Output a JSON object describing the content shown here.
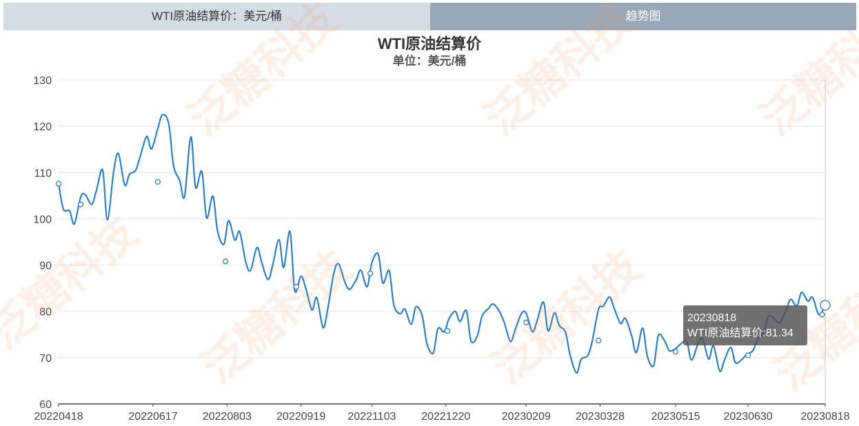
{
  "tabs": {
    "left_label": "WTI原油结算价：美元/桶",
    "right_label": "趋势图"
  },
  "watermark_text": "泛糖科技",
  "colors": {
    "line": "#2b7fc7",
    "tab_left": "#d5dce4",
    "tab_right": "#98a8b8"
  },
  "tooltip": {
    "date": "20230818",
    "text": "WTI原油结算价:81.34"
  },
  "chart_data": {
    "type": "line",
    "title": "WTI原油结算价",
    "subtitle": "单位：美元/桶",
    "xlabel": "",
    "ylabel": "",
    "ylim": [
      60,
      130
    ],
    "yticks": [
      60,
      70,
      80,
      90,
      100,
      110,
      120,
      130
    ],
    "xticks": [
      "20220418",
      "20220617",
      "20220803",
      "20220919",
      "20221103",
      "20221220",
      "20230209",
      "20230328",
      "20230515",
      "20230630",
      "20230818"
    ],
    "grid": "horizontal",
    "series": [
      {
        "name": "WTI原油结算价",
        "x": [
          "20220418",
          "20220421",
          "20220425",
          "20220428",
          "20220502",
          "20220505",
          "20220509",
          "20220512",
          "20220516",
          "20220519",
          "20220523",
          "20220526",
          "20220530",
          "20220602",
          "20220606",
          "20220609",
          "20220613",
          "20220616",
          "20220620",
          "20220623",
          "20220627",
          "20220630",
          "20220704",
          "20220707",
          "20220711",
          "20220714",
          "20220718",
          "20220721",
          "20220725",
          "20220728",
          "20220801",
          "20220804",
          "20220808",
          "20220811",
          "20220815",
          "20220818",
          "20220822",
          "20220825",
          "20220829",
          "20220901",
          "20220905",
          "20220908",
          "20220912",
          "20220915",
          "20220919",
          "20220922",
          "20220926",
          "20220929",
          "20221003",
          "20221006",
          "20221010",
          "20221013",
          "20221017",
          "20221020",
          "20221024",
          "20221027",
          "20221031",
          "20221103",
          "20221107",
          "20221110",
          "20221114",
          "20221117",
          "20221121",
          "20221124",
          "20221128",
          "20221201",
          "20221205",
          "20221208",
          "20221212",
          "20221215",
          "20221219",
          "20221222",
          "20221226",
          "20221229",
          "20230102",
          "20230105",
          "20230109",
          "20230112",
          "20230116",
          "20230119",
          "20230123",
          "20230126",
          "20230130",
          "20230202",
          "20230206",
          "20230209",
          "20230213",
          "20230216",
          "20230220",
          "20230223",
          "20230227",
          "20230302",
          "20230306",
          "20230309",
          "20230313",
          "20230316",
          "20230320",
          "20230323",
          "20230327",
          "20230330",
          "20230403",
          "20230406",
          "20230410",
          "20230413",
          "20230417",
          "20230420",
          "20230424",
          "20230427",
          "20230501",
          "20230504",
          "20230508",
          "20230511",
          "20230515",
          "20230518",
          "20230522",
          "20230525",
          "20230529",
          "20230601",
          "20230605",
          "20230608",
          "20230612",
          "20230615",
          "20230619",
          "20230622",
          "20230626",
          "20230629",
          "20230703",
          "20230706",
          "20230710",
          "20230713",
          "20230717",
          "20230720",
          "20230724",
          "20230727",
          "20230731",
          "20230803",
          "20230807",
          "20230810",
          "20230814",
          "20230818"
        ],
        "values": [
          107.6,
          102.1,
          101.7,
          98.9,
          104.7,
          105.2,
          103.1,
          106.1,
          110.5,
          99.8,
          110.3,
          114.1,
          107.3,
          109.6,
          110.5,
          113.7,
          117.8,
          115.1,
          119.5,
          122.5,
          120.5,
          111.5,
          108.2,
          104.8,
          117.7,
          106.8,
          110.2,
          100.2,
          104.9,
          97.3,
          94.5,
          99.6,
          95.4,
          97.2,
          90.5,
          88.9,
          93.8,
          90.6,
          86.9,
          90.0,
          95.5,
          89.5,
          97.3,
          84.5,
          87.6,
          85.0,
          80.3,
          83.0,
          76.5,
          80.6,
          88.5,
          90.2,
          86.2,
          84.8,
          86.8,
          88.9,
          85.3,
          90.5,
          92.4,
          86.1,
          88.8,
          81.3,
          79.5,
          80.5,
          77.2,
          81.0,
          79.0,
          73.0,
          71.0,
          76.3,
          75.6,
          78.4,
          80.0,
          77.8,
          80.2,
          73.6,
          74.7,
          79.0,
          80.6,
          81.6,
          80.0,
          77.7,
          73.5,
          76.0,
          79.5,
          79.6,
          75.6,
          78.0,
          82.0,
          75.8,
          79.7,
          77.0,
          75.5,
          70.5,
          66.7,
          69.7,
          70.4,
          73.6,
          80.5,
          81.1,
          83.1,
          80.6,
          77.4,
          78.5,
          74.8,
          71.1,
          76.4,
          70.3,
          68.3,
          74.8,
          73.6,
          71.5,
          72.0,
          72.9,
          73.5,
          69.5,
          72.8,
          74.1,
          69.7,
          72.6,
          67.1,
          69.5,
          72.2,
          68.9,
          69.6,
          70.7,
          71.5,
          73.9,
          75.6,
          79.0,
          78.3,
          77.5,
          80.1,
          82.6,
          81.2,
          84.1,
          82.2,
          83.0,
          79.3,
          81.34
        ]
      }
    ],
    "markers": [
      {
        "x": "20220418",
        "y": 107.6
      },
      {
        "x": "20220502",
        "y": 103.1
      },
      {
        "x": "20220620",
        "y": 108.0
      },
      {
        "x": "20220802",
        "y": 90.8
      },
      {
        "x": "20220916",
        "y": 85.3
      },
      {
        "x": "20221102",
        "y": 88.2
      },
      {
        "x": "20221221",
        "y": 75.8
      },
      {
        "x": "20230209",
        "y": 77.6
      },
      {
        "x": "20230327",
        "y": 73.7
      },
      {
        "x": "20230515",
        "y": 71.3
      },
      {
        "x": "20230630",
        "y": 70.5
      },
      {
        "x": "20230816",
        "y": 79.3
      },
      {
        "x": "20230818",
        "y": 81.34
      }
    ]
  }
}
